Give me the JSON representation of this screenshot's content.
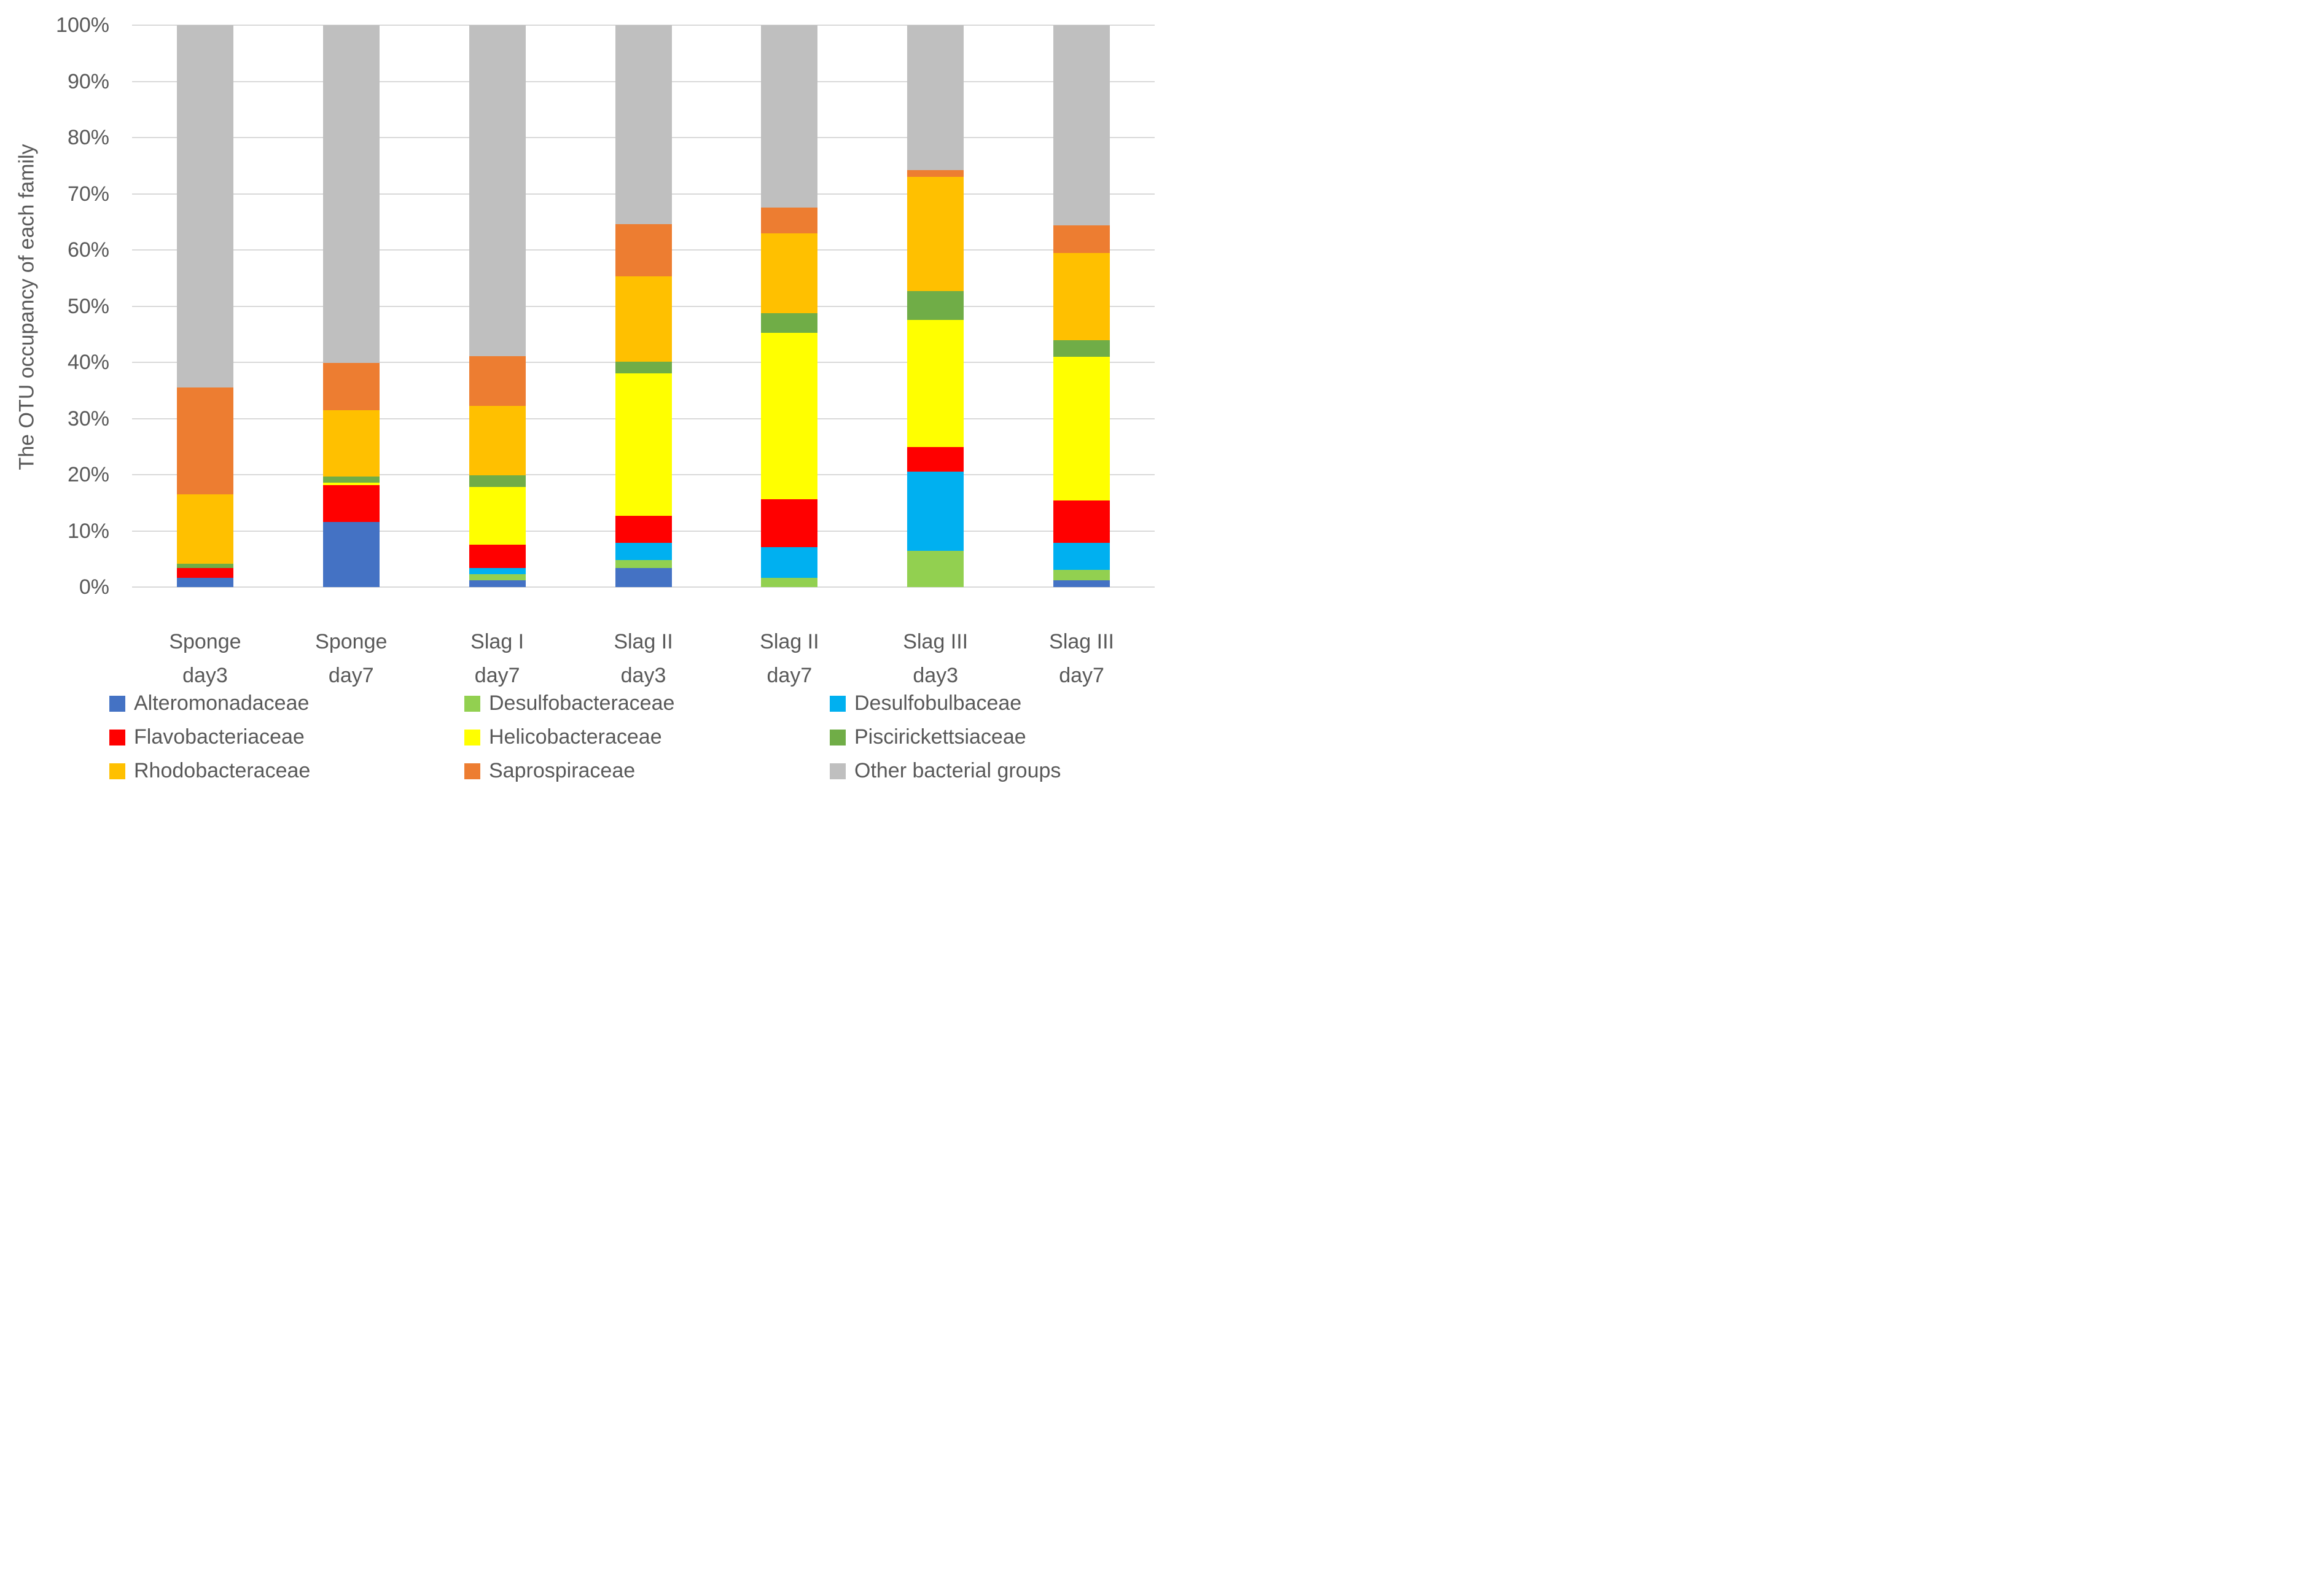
{
  "figure": {
    "background": "#FFFFFF",
    "text_color": "#595959",
    "gridline_color": "#D9D9D9"
  },
  "chart_data": {
    "type": "bar",
    "stacked": true,
    "percent_stacked": true,
    "title": "",
    "ylabel": "The OTU occupancy of each family",
    "xlabel": "",
    "ylim": [
      0,
      100
    ],
    "ytick_interval": 10,
    "ytick_labels": [
      "0%",
      "10%",
      "20%",
      "30%",
      "40%",
      "50%",
      "60%",
      "70%",
      "80%",
      "90%",
      "100%"
    ],
    "grid": true,
    "legend_position": "bottom",
    "categories": [
      {
        "line1": "Sponge",
        "line2": "day3"
      },
      {
        "line1": "Sponge",
        "line2": "day7"
      },
      {
        "line1": "Slag I",
        "line2": "day7"
      },
      {
        "line1": "Slag II",
        "line2": "day3"
      },
      {
        "line1": "Slag II",
        "line2": "day7"
      },
      {
        "line1": "Slag III",
        "line2": "day3"
      },
      {
        "line1": "Slag III",
        "line2": "day7"
      }
    ],
    "series": [
      {
        "name": "Alteromonadaceae",
        "color": "#4472C4",
        "values": [
          1.6,
          11.6,
          1.2,
          3.4,
          0,
          0,
          1.2
        ]
      },
      {
        "name": "Desulfobacteraceae",
        "color": "#92D050",
        "values": [
          0,
          0,
          1.1,
          1.4,
          1.6,
          6.4,
          1.9
        ]
      },
      {
        "name": "Desulfobulbaceae",
        "color": "#00B0F0",
        "values": [
          0,
          0,
          1.1,
          3.1,
          5.5,
          14.1,
          4.8
        ]
      },
      {
        "name": "Flavobacteriaceae",
        "color": "#FF0000",
        "values": [
          1.8,
          6.6,
          4.1,
          4.8,
          8.5,
          4.4,
          7.5
        ]
      },
      {
        "name": "Helicobacteraceae",
        "color": "#FFFF00",
        "values": [
          0,
          0.4,
          10.3,
          25.3,
          29.7,
          22.6,
          25.6
        ]
      },
      {
        "name": "Piscirickettsiaceae",
        "color": "#70AD47",
        "values": [
          0.8,
          1.1,
          2.1,
          2.1,
          3.4,
          5.2,
          2.9
        ]
      },
      {
        "name": "Rhodobacteraceae",
        "color": "#FFC000",
        "values": [
          12.3,
          11.8,
          12.3,
          15.2,
          14.3,
          20.3,
          15.6
        ]
      },
      {
        "name": "Saprospiraceae",
        "color": "#ED7D31",
        "values": [
          19.0,
          8.4,
          8.9,
          9.3,
          4.6,
          1.2,
          4.9
        ]
      },
      {
        "name": "Other bacterial groups",
        "color": "#BFBFBF",
        "values": [
          64.5,
          60.1,
          58.9,
          35.4,
          32.4,
          25.8,
          35.6
        ]
      }
    ]
  }
}
